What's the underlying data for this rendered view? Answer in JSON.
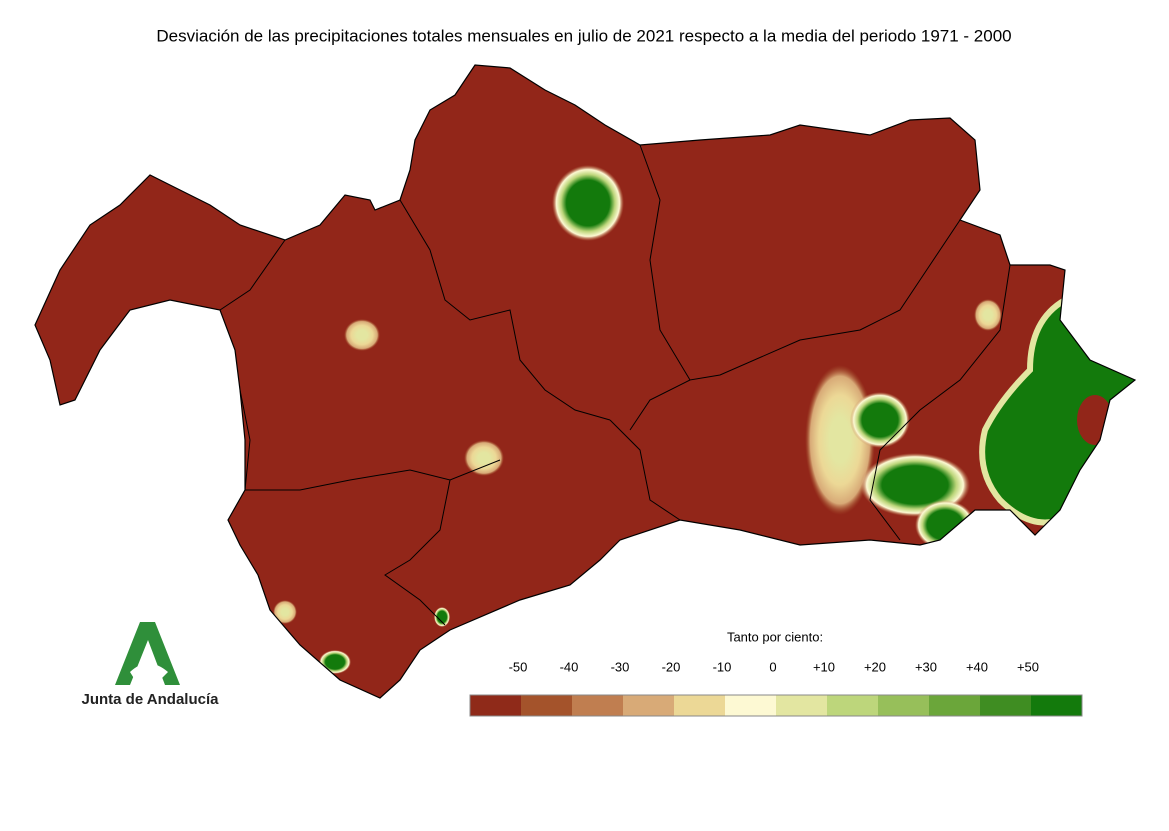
{
  "title": "Desviación de las precipitaciones totales mensuales en julio de 2021 respecto a la media del periodo 1971 - 2000",
  "legend": {
    "title": "Tanto por ciento:",
    "labels": [
      "-50",
      "-40",
      "-30",
      "-20",
      "-10",
      "0",
      "+10",
      "+20",
      "+30",
      "+40",
      "+50"
    ],
    "colors": [
      "#8f2a19",
      "#a4532b",
      "#c07e50",
      "#d8aa77",
      "#ecd896",
      "#fdf9d3",
      "#e3e6a1",
      "#bdd67b",
      "#97bf5a",
      "#6ba63a",
      "#3f8d22",
      "#137a0c"
    ]
  },
  "logo": {
    "text": "Junta de Andalucía"
  }
}
